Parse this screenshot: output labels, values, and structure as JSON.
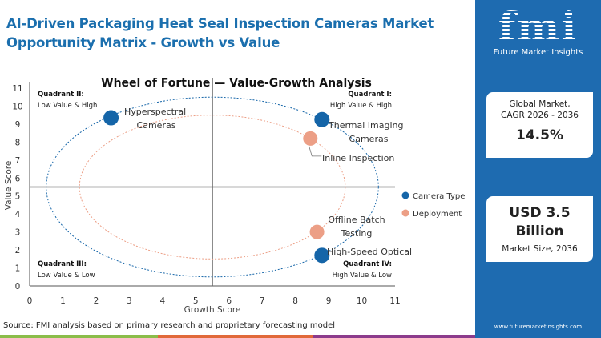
{
  "header": {
    "title": "AI-Driven Packaging Heat Seal Inspection Cameras Market Opportunity Matrix - Growth vs Value"
  },
  "sidebar": {
    "logo_text": "fmi",
    "logo_subtitle": "Future Market Insights",
    "cagr_label_1": "Global Market,",
    "cagr_label_2": "CAGR 2026 - 2036",
    "cagr_value": "14.5%",
    "size_value_1": "USD 3.5",
    "size_value_2": "Billion",
    "size_label": "Market Size, 2036",
    "url": "www.futuremarketinsights.com"
  },
  "footer": {
    "source": "Source: FMI analysis based on primary research and proprietary forecasting model"
  },
  "colors": {
    "brand": "#1e6bb0",
    "camera_type": "#1565a8",
    "deployment": "#ec9f86",
    "strip": [
      "#8bbd4a",
      "#e1693a",
      "#8c3b8c"
    ]
  },
  "chart_data": {
    "type": "scatter",
    "title": "Wheel of Fortune — Value-Growth  Analysis",
    "xlabel": "Growth Score",
    "ylabel": "Value Score",
    "xlim": [
      0,
      11
    ],
    "ylim": [
      0,
      11
    ],
    "xticks": [
      0,
      1,
      2,
      3,
      4,
      5,
      6,
      7,
      8,
      9,
      10,
      11
    ],
    "yticks": [
      0,
      1,
      2,
      3,
      4,
      5,
      6,
      7,
      8,
      9,
      10,
      11
    ],
    "quadrant_dividers": {
      "x": 5.5,
      "y": 5.5
    },
    "quadrants": [
      {
        "name": "Quadrant I:",
        "desc": "High Value & High"
      },
      {
        "name": "Quadrant II:",
        "desc": "Low Value & High"
      },
      {
        "name": "Quadrant III:",
        "desc": "Low Value & Low"
      },
      {
        "name": "Quadrant IV:",
        "desc": "High Value & Low"
      }
    ],
    "legend_position": "right",
    "series": [
      {
        "name": "Camera Type",
        "color": "#1565a8",
        "ellipse": {
          "cx": 5.5,
          "cy": 5.5,
          "rx": 5,
          "ry": 5
        },
        "points": [
          {
            "label": "Hyperspectral Cameras",
            "x": 2.45,
            "y": 9.35
          },
          {
            "label": "Thermal Imaging Cameras",
            "x": 8.8,
            "y": 9.25
          },
          {
            "label": "High-Speed Optical",
            "x": 8.8,
            "y": 1.7
          }
        ]
      },
      {
        "name": "Deployment",
        "color": "#ec9f86",
        "ellipse": {
          "cx": 5.5,
          "cy": 5.5,
          "rx": 4,
          "ry": 4
        },
        "points": [
          {
            "label": "Inline Inspection",
            "x": 8.45,
            "y": 8.2
          },
          {
            "label": "Offline Batch Testing",
            "x": 8.65,
            "y": 3.0
          }
        ]
      }
    ]
  }
}
